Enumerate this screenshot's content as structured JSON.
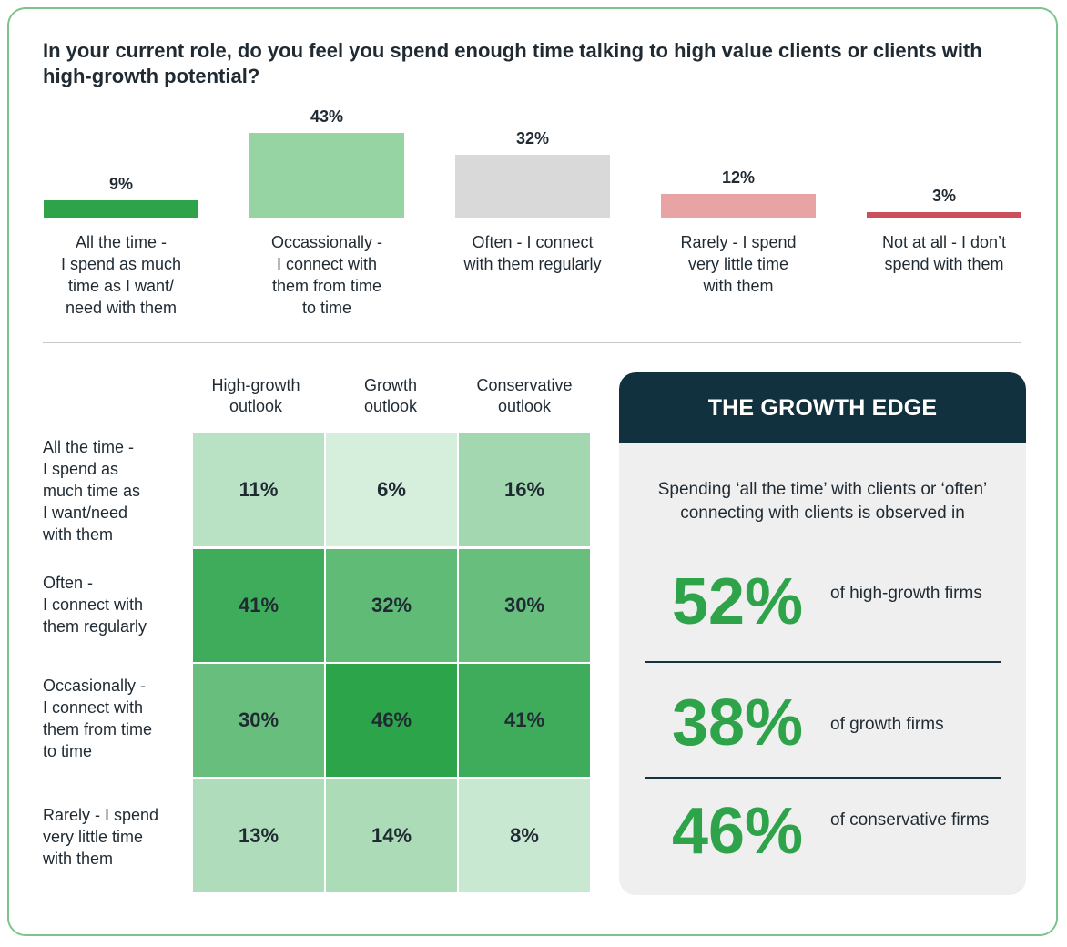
{
  "question": "In your current role, do you feel you spend enough time talking to high value clients or clients with high-growth potential?",
  "chart_data": [
    {
      "type": "bar",
      "title": "In your current role, do you feel you spend enough time talking to high value clients or clients with high-growth potential?",
      "categories": [
        "All the time - I spend as much time as I want/ need with them",
        "Occassionally - I connect with them from time to time",
        "Often - I connect with them regularly",
        "Rarely - I spend very little time with them",
        "Not at all - I don’t spend with them"
      ],
      "values": [
        9,
        43,
        32,
        12,
        3
      ],
      "value_labels": [
        "9%",
        "43%",
        "32%",
        "12%",
        "3%"
      ],
      "colors": [
        "#2ea34a",
        "#96d4a3",
        "#d9d9d9",
        "#e8a3a4",
        "#cc4f5b"
      ],
      "ylim": [
        0,
        43
      ],
      "unit": "%"
    },
    {
      "type": "heatmap",
      "columns": [
        "High-growth outlook",
        "Growth outlook",
        "Conservative outlook"
      ],
      "rows": [
        "All the time - I spend as much time as I want/need with them",
        "Often - I connect with them regularly",
        "Occasionally - I connect with them from time to time",
        "Rarely - I spend very little time with them"
      ],
      "values": [
        [
          11,
          6,
          16
        ],
        [
          41,
          32,
          30
        ],
        [
          30,
          46,
          41
        ],
        [
          13,
          14,
          8
        ]
      ],
      "unit": "%"
    }
  ],
  "bar_labels_display": [
    "All the time -\nI spend as much\ntime as I want/\nneed with them",
    "Occassionally -\nI connect with\nthem from time\nto time",
    "Often - I connect\nwith them regularly",
    "Rarely - I spend\nvery little time\nwith them",
    "Not at all - I don’t\nspend with them"
  ],
  "heatmap_col_display": [
    "High-growth\noutlook",
    "Growth\noutlook",
    "Conservative\noutlook"
  ],
  "heatmap_row_display": [
    "All the time -\nI spend as\nmuch time as\nI want/need\nwith them",
    "Often -\nI connect with\nthem regularly",
    "Occasionally -\nI connect with\nthem from time\nto time",
    "Rarely - I spend\nvery little time\nwith them"
  ],
  "growth_edge": {
    "title": "THE GROWTH EDGE",
    "intro": "Spending ‘all the time’ with clients or ‘often’ connecting with clients is observed in",
    "stats": [
      {
        "value": "52%",
        "text": "of high-growth firms"
      },
      {
        "value": "38%",
        "text": "of growth firms"
      },
      {
        "value": "46%",
        "text": "of conservative firms"
      }
    ]
  },
  "colors": {
    "accent_green": "#2ea34a",
    "dark_navy": "#12313f",
    "frame_border": "#7cc48d",
    "panel_bg": "#efefef"
  }
}
